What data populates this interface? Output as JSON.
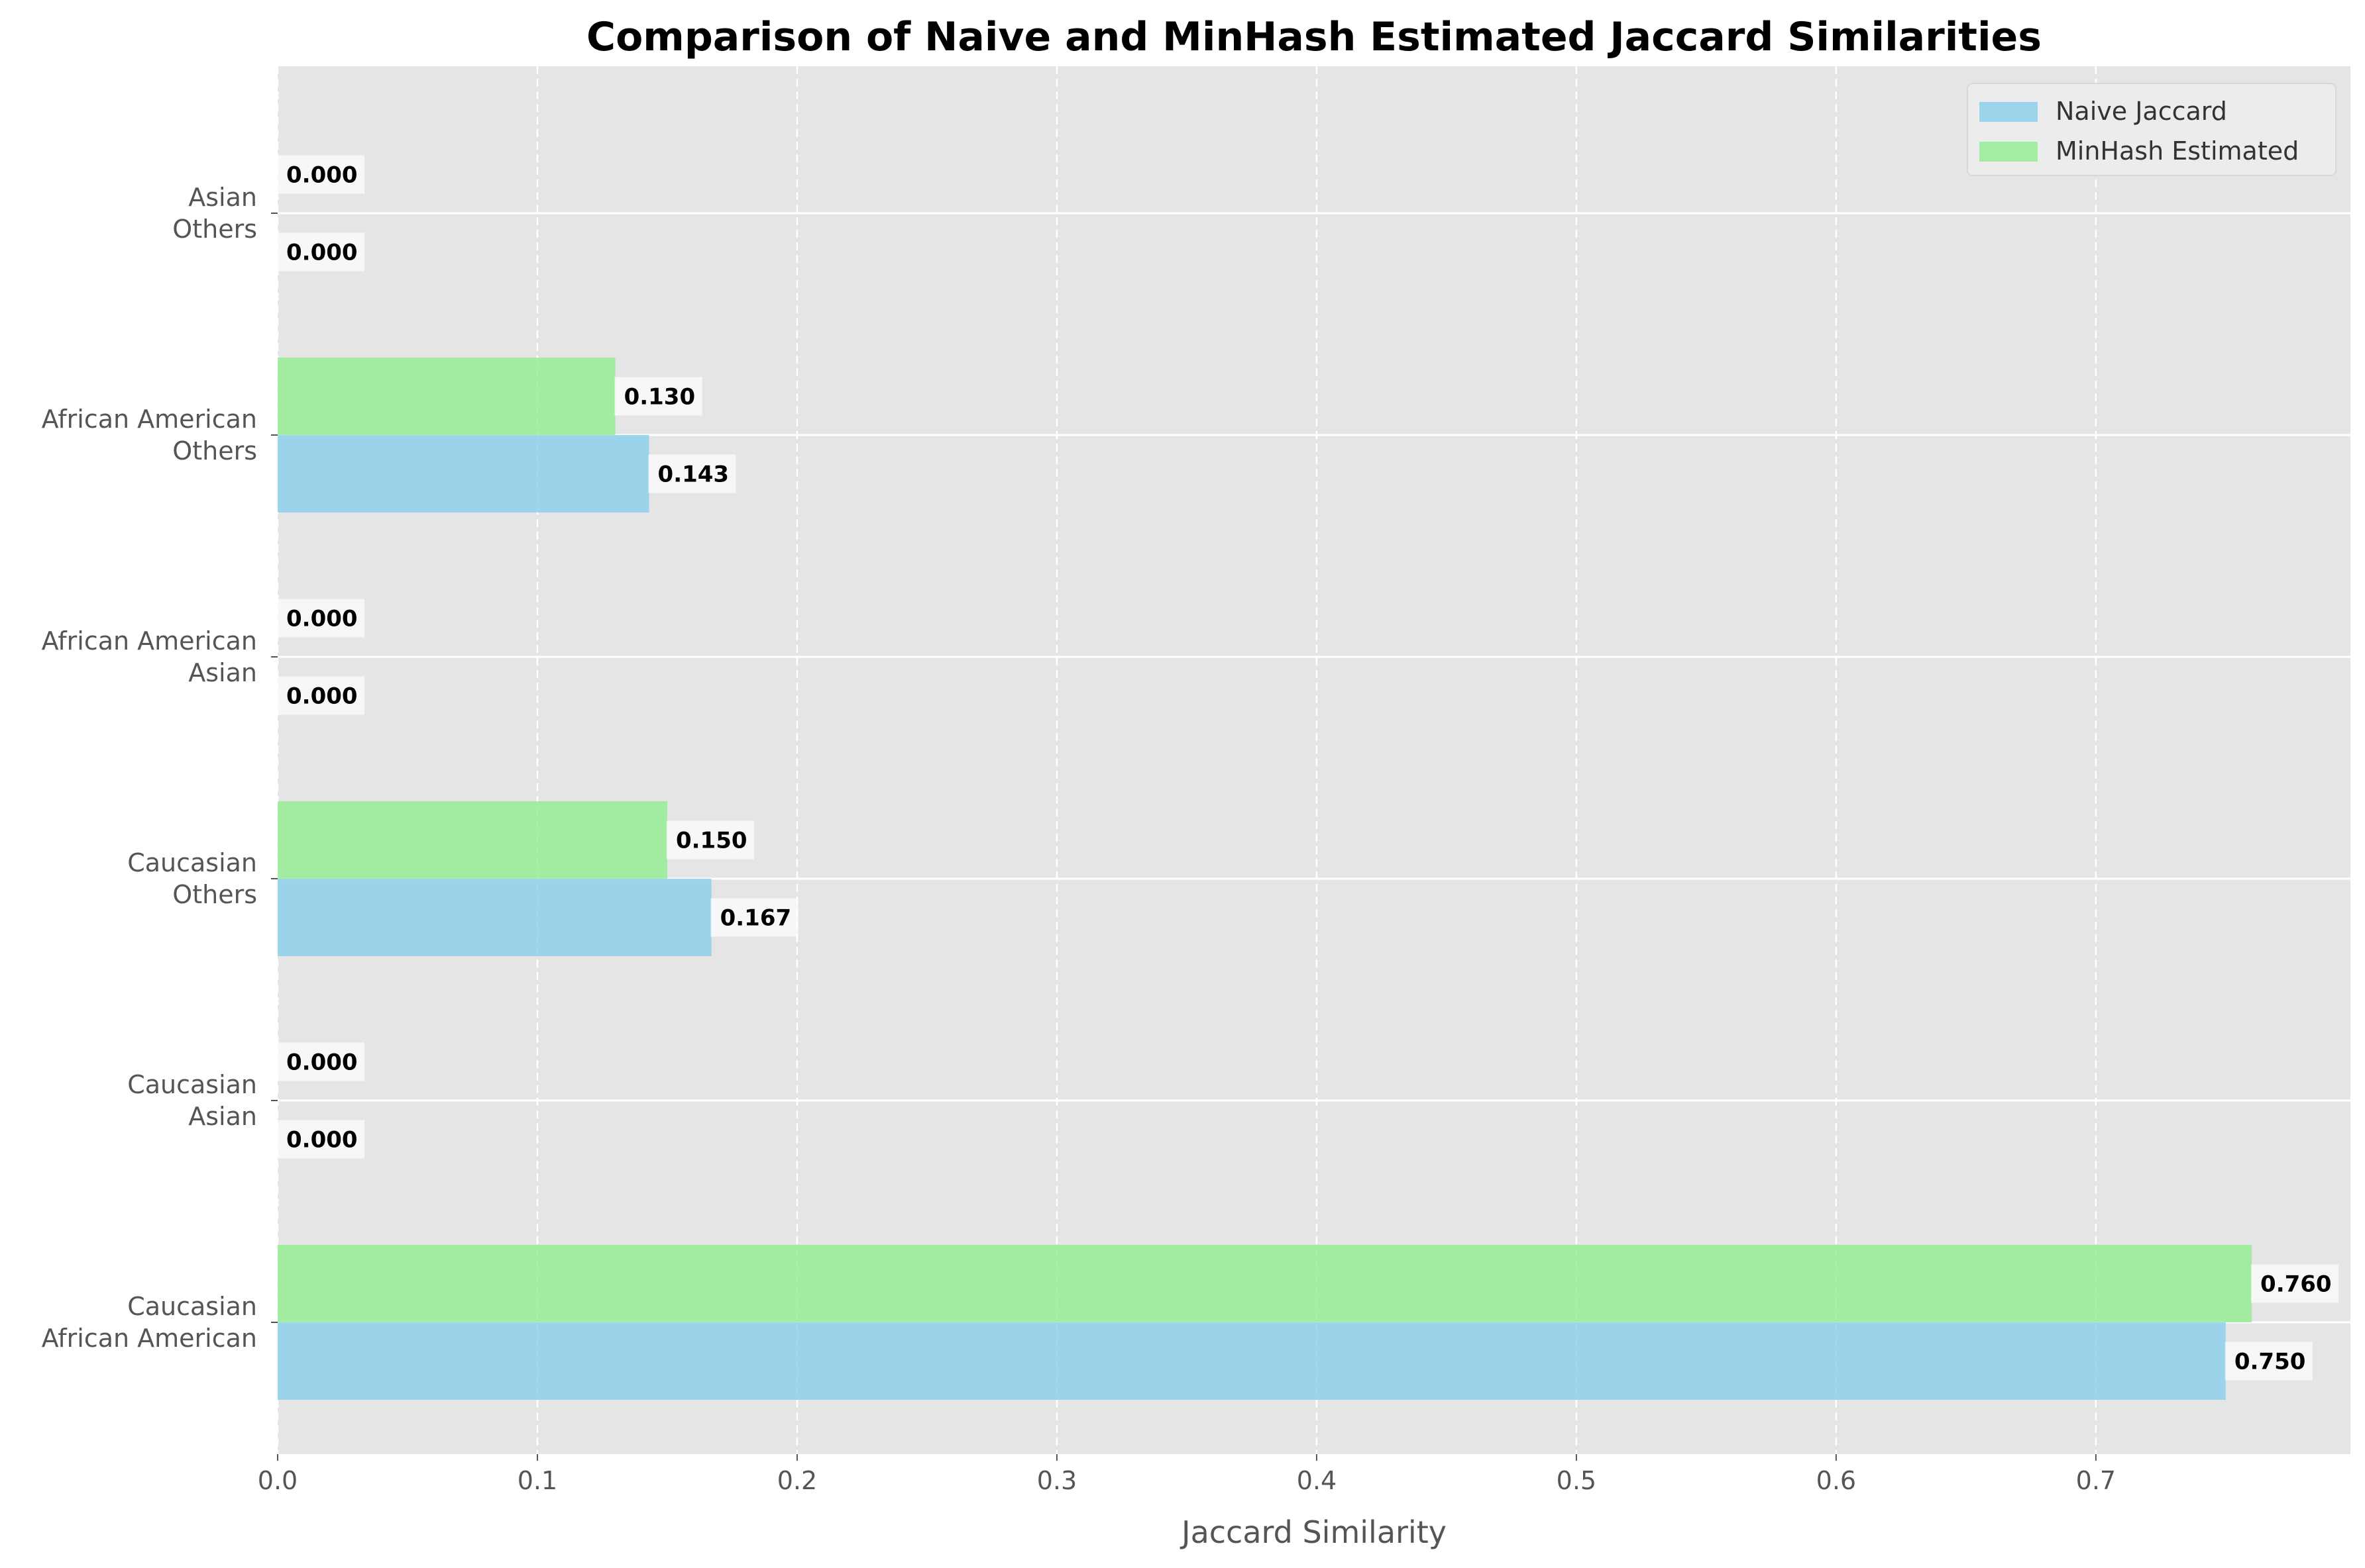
{
  "chart_data": {
    "type": "bar",
    "orientation": "horizontal",
    "title": "Comparison of Naive and MinHash Estimated Jaccard Similarities",
    "xlabel": "Jaccard Similarity",
    "ylabel": "",
    "xlim": [
      0,
      0.798
    ],
    "x_ticks": [
      "0.0",
      "0.1",
      "0.2",
      "0.3",
      "0.4",
      "0.5",
      "0.6",
      "0.7"
    ],
    "grid": true,
    "legend_position": "top-right",
    "categories": [
      [
        "Caucasian",
        "African American"
      ],
      [
        "Caucasian",
        "Asian"
      ],
      [
        "Caucasian",
        "Others"
      ],
      [
        "African American",
        "Asian"
      ],
      [
        "African American",
        "Others"
      ],
      [
        "Asian",
        "Others"
      ]
    ],
    "series": [
      {
        "name": "Naive Jaccard",
        "color": "#87ceeb",
        "values": [
          0.75,
          0.0,
          0.167,
          0.0,
          0.143,
          0.0
        ],
        "labels": [
          "0.750",
          "0.000",
          "0.167",
          "0.000",
          "0.143",
          "0.000"
        ]
      },
      {
        "name": "MinHash Estimated",
        "color": "#90ee90",
        "values": [
          0.76,
          0.0,
          0.15,
          0.0,
          0.13,
          0.0
        ],
        "labels": [
          "0.760",
          "0.000",
          "0.150",
          "0.000",
          "0.130",
          "0.000"
        ]
      }
    ]
  }
}
